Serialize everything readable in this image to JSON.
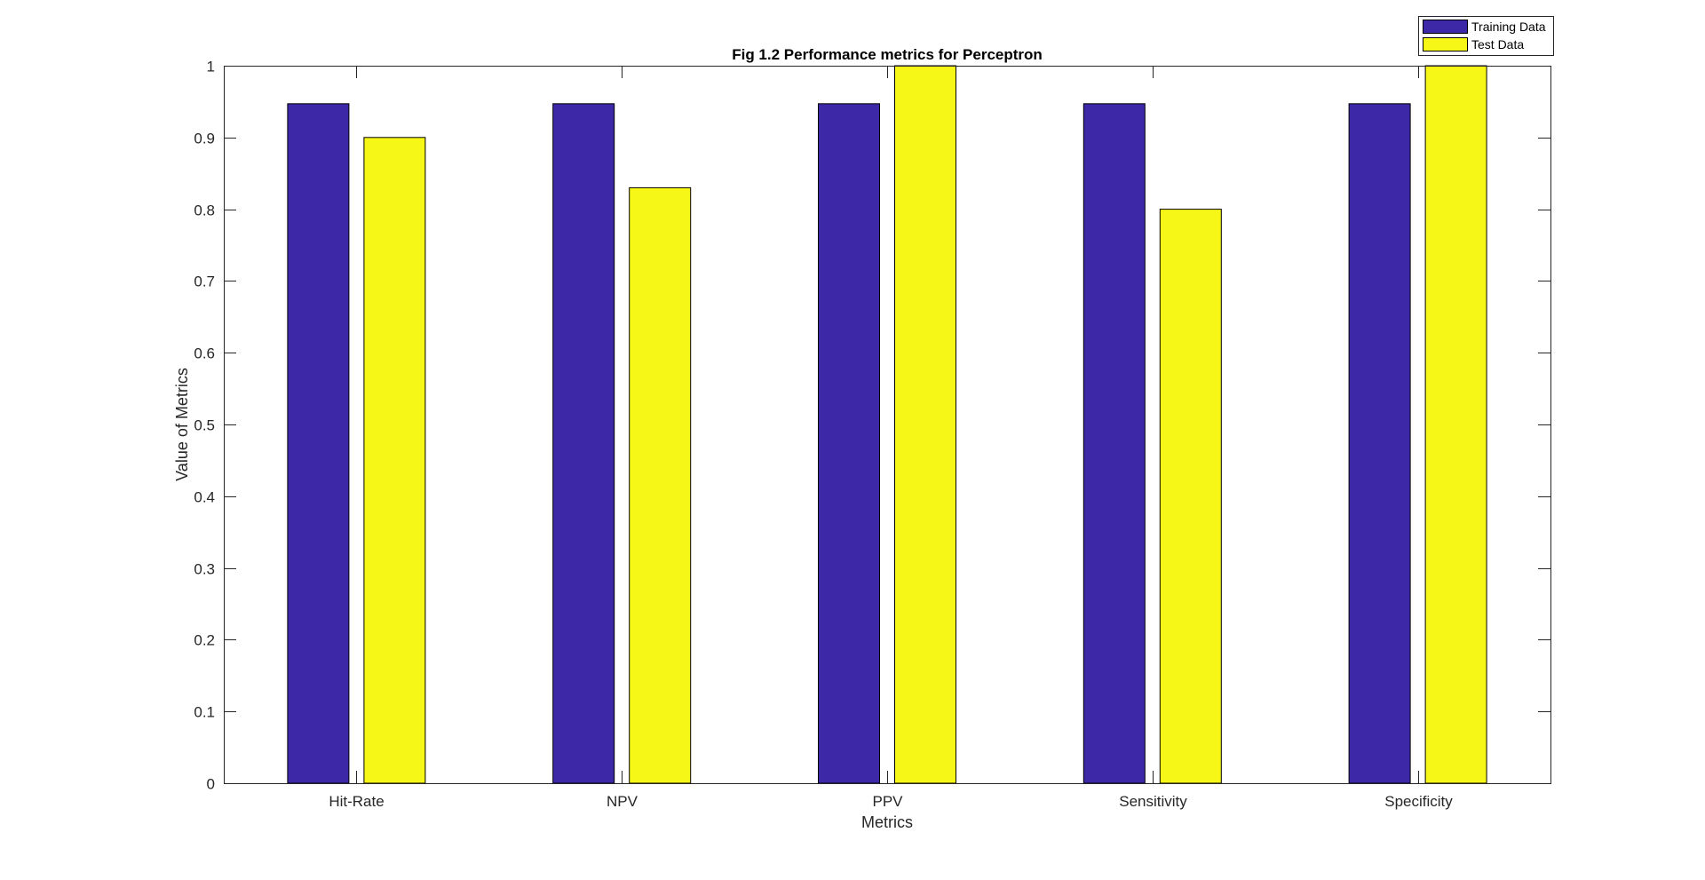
{
  "chart_data": {
    "type": "bar",
    "title": "Fig 1.2 Performance metrics for Perceptron",
    "xlabel": "Metrics",
    "ylabel": "Value of Metrics",
    "categories": [
      "Hit-Rate",
      "NPV",
      "PPV",
      "Sensitivity",
      "Specificity"
    ],
    "series": [
      {
        "name": "Training Data",
        "color": "#3d28a7",
        "values": [
          0.947,
          0.947,
          0.947,
          0.947,
          0.947
        ]
      },
      {
        "name": "Test Data",
        "color": "#f7f717",
        "values": [
          0.9,
          0.83,
          1.0,
          0.8,
          1.0
        ]
      }
    ],
    "ylim": [
      0,
      1
    ],
    "yticks": [
      0,
      0.1,
      0.2,
      0.3,
      0.4,
      0.5,
      0.6,
      0.7,
      0.8,
      0.9,
      1
    ],
    "ytick_labels": [
      "0",
      "0.1",
      "0.2",
      "0.3",
      "0.4",
      "0.5",
      "0.6",
      "0.7",
      "0.8",
      "0.9",
      "1"
    ],
    "grid": false,
    "legend_position": "top-right, outside axes"
  }
}
